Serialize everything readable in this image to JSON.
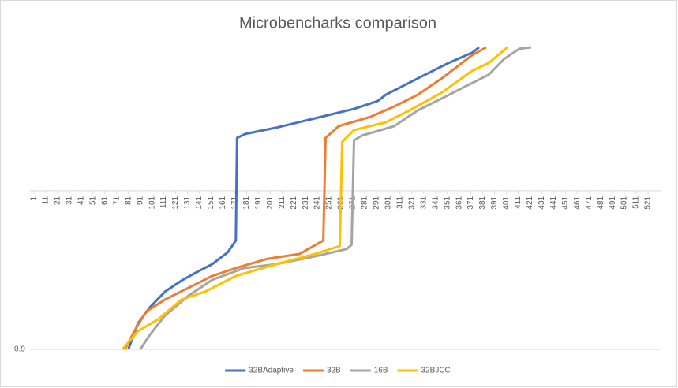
{
  "chart_data": {
    "type": "line",
    "title": "Microbencharks comparison",
    "xlim": [
      1,
      521
    ],
    "xticks": [
      1,
      11,
      21,
      31,
      41,
      51,
      61,
      71,
      81,
      91,
      101,
      111,
      121,
      131,
      141,
      151,
      161,
      171,
      181,
      191,
      201,
      211,
      221,
      231,
      241,
      251,
      261,
      271,
      281,
      291,
      301,
      311,
      321,
      331,
      341,
      351,
      361,
      371,
      381,
      391,
      401,
      411,
      421,
      431,
      441,
      451,
      461,
      471,
      481,
      491,
      501,
      511,
      521
    ],
    "ylim": [
      0.9,
      1.0
    ],
    "yticks": [
      0.9
    ],
    "xaxis_crossing": 0.9525,
    "legend": "bottom",
    "series": [
      {
        "name": "32BAdaptive",
        "color": "#4472c4",
        "x": [
          81,
          89,
          99,
          112,
          127,
          139,
          152,
          165,
          172,
          173,
          180,
          206,
          239,
          272,
          292,
          299,
          319,
          332,
          352,
          372,
          378
        ],
        "values": [
          0.9,
          0.9086,
          0.9138,
          0.9191,
          0.923,
          0.9256,
          0.9282,
          0.9321,
          0.936,
          0.97,
          0.9713,
          0.9734,
          0.9765,
          0.9796,
          0.9822,
          0.9843,
          0.9883,
          0.9909,
          0.9948,
          0.9982,
          1.0
        ]
      },
      {
        "name": "32B",
        "color": "#ed7d31",
        "x": [
          78,
          86,
          96,
          112,
          132,
          152,
          172,
          199,
          226,
          246,
          248,
          259,
          286,
          306,
          326,
          346,
          359,
          372,
          384
        ],
        "values": [
          0.9,
          0.906,
          0.9125,
          0.9165,
          0.9204,
          0.9243,
          0.9269,
          0.93,
          0.9316,
          0.936,
          0.97,
          0.9739,
          0.977,
          0.9804,
          0.9843,
          0.9896,
          0.9935,
          0.9974,
          1.0
        ]
      },
      {
        "name": "16B",
        "color": "#a5a5a5",
        "x": [
          91,
          99,
          112,
          132,
          152,
          179,
          206,
          239,
          266,
          270,
          272,
          279,
          306,
          326,
          346,
          366,
          386,
          399,
          412,
          422
        ],
        "values": [
          0.9,
          0.9047,
          0.9112,
          0.9178,
          0.923,
          0.9269,
          0.9282,
          0.9308,
          0.9332,
          0.9347,
          0.9692,
          0.9708,
          0.9739,
          0.9791,
          0.983,
          0.987,
          0.9909,
          0.9961,
          0.9995,
          1.0
        ]
      },
      {
        "name": "32BJCC",
        "color": "#ffc000",
        "x": [
          76,
          89,
          106,
          126,
          146,
          172,
          206,
          239,
          260,
          262,
          272,
          299,
          319,
          346,
          372,
          386,
          402
        ],
        "values": [
          0.9,
          0.906,
          0.9099,
          0.9165,
          0.9191,
          0.9243,
          0.9282,
          0.9316,
          0.9342,
          0.9687,
          0.9726,
          0.9752,
          0.9791,
          0.9849,
          0.9922,
          0.9948,
          1.0
        ]
      }
    ]
  }
}
